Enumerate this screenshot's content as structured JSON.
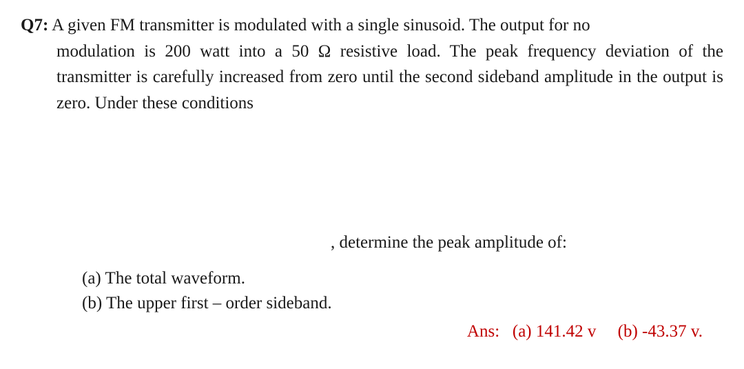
{
  "question": {
    "label": "Q7:",
    "line1": "A given FM transmitter is modulated with a single sinusoid. The output for no",
    "line2": "modulation is 200 watt into a 50 Ω resistive load. The peak frequency deviation of the transmitter is carefully increased from zero until the second sideband amplitude in the output is zero. Under these conditions"
  },
  "middle": ", determine the peak amplitude of:",
  "parts": {
    "a": "(a) The total waveform.",
    "b": "(b) The upper first – order sideband."
  },
  "answers": {
    "label": "Ans:",
    "a": "(a) 141.42 v",
    "b": "(b) -43.37 v."
  },
  "colors": {
    "text": "#1a1a1a",
    "answer": "#c00000",
    "background": "#ffffff"
  },
  "typography": {
    "font_family": "Times New Roman",
    "font_size_pt": 19
  }
}
